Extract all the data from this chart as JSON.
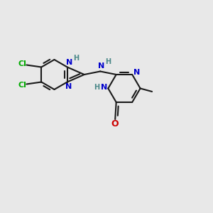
{
  "bg_color": "#e8e8e8",
  "bond_color": "#1a1a1a",
  "bond_lw": 1.5,
  "colors": {
    "N_blue": "#0000cc",
    "N_teal": "#4a8888",
    "Cl_green": "#00aa00",
    "O_red": "#cc0000",
    "C_black": "#1a1a1a"
  },
  "xlim": [
    0,
    10
  ],
  "ylim": [
    0,
    10
  ]
}
